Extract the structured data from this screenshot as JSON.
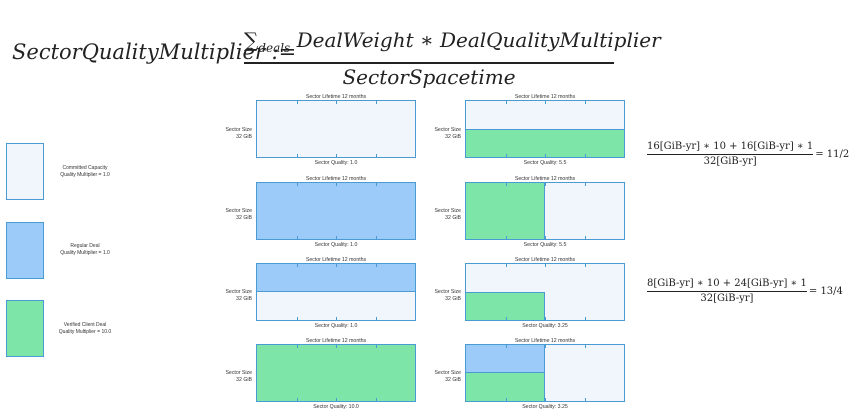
{
  "formula": {
    "lhs": "SectorQualityMultiplier :=",
    "num_sum": "∑",
    "num_sub": "deals",
    "num_text": "DealWeight ∗ DealQualityMultiplier",
    "den": "SectorSpacetime"
  },
  "colors": {
    "committed": "#f0f6fc",
    "regular": "#9ccbf9",
    "verified": "#7ee5a9",
    "border": "#4a9ad4"
  },
  "legend": [
    {
      "line1": "Committed Capacity",
      "line2": "Quality Multiplier = 1.0",
      "kind": "committed"
    },
    {
      "line1": "Regular Deal",
      "line2": "Quality Multiplier = 1.0",
      "kind": "regular"
    },
    {
      "line1": "Verified Client Deal",
      "line2": "Quality Multiplier = 10.0",
      "kind": "verified"
    }
  ],
  "cells": [
    {
      "title": "Sector Lifetime 12 months",
      "size1": "Sector Size",
      "size2": "32 GiB",
      "quality": "Sector Quality: 1.0"
    },
    {
      "title": "Sector Lifetime 12 months",
      "size1": "Sector Size",
      "size2": "32 GiB",
      "quality": "Sector Quality: 1.0"
    },
    {
      "title": "Sector Lifetime 12 months",
      "size1": "Sector Size",
      "size2": "32 GiB",
      "quality": "Sector Quality: 1.0"
    },
    {
      "title": "Sector Lifetime 12 months",
      "size1": "Sector Size",
      "size2": "32 GiB",
      "quality": "Sector Quality: 10.0"
    },
    {
      "title": "Sector Lifetime 12 months",
      "size1": "Sector Size",
      "size2": "32 GiB",
      "quality": "Sector Quality: 5.5"
    },
    {
      "title": "Sector Lifetime 12 months",
      "size1": "Sector Size",
      "size2": "32 GiB",
      "quality": "Sector Quality: 5.5"
    },
    {
      "title": "Sector Lifetime 12 months",
      "size1": "Sector Size",
      "size2": "32 GiB",
      "quality": "Sector Quality: 3.25"
    },
    {
      "title": "Sector Lifetime 12 months",
      "size1": "Sector Size",
      "size2": "32 GiB",
      "quality": "Sector Quality: 3.25"
    }
  ],
  "equations": [
    {
      "num": "16[GiB-yr] ∗ 10 + 16[GiB-yr] ∗ 1",
      "den": "32[GiB-yr]",
      "result": "= 11/2"
    },
    {
      "num": "8[GiB-yr] ∗ 10 + 24[GiB-yr] ∗ 1",
      "den": "32[GiB-yr]",
      "result": "= 13/4"
    }
  ]
}
